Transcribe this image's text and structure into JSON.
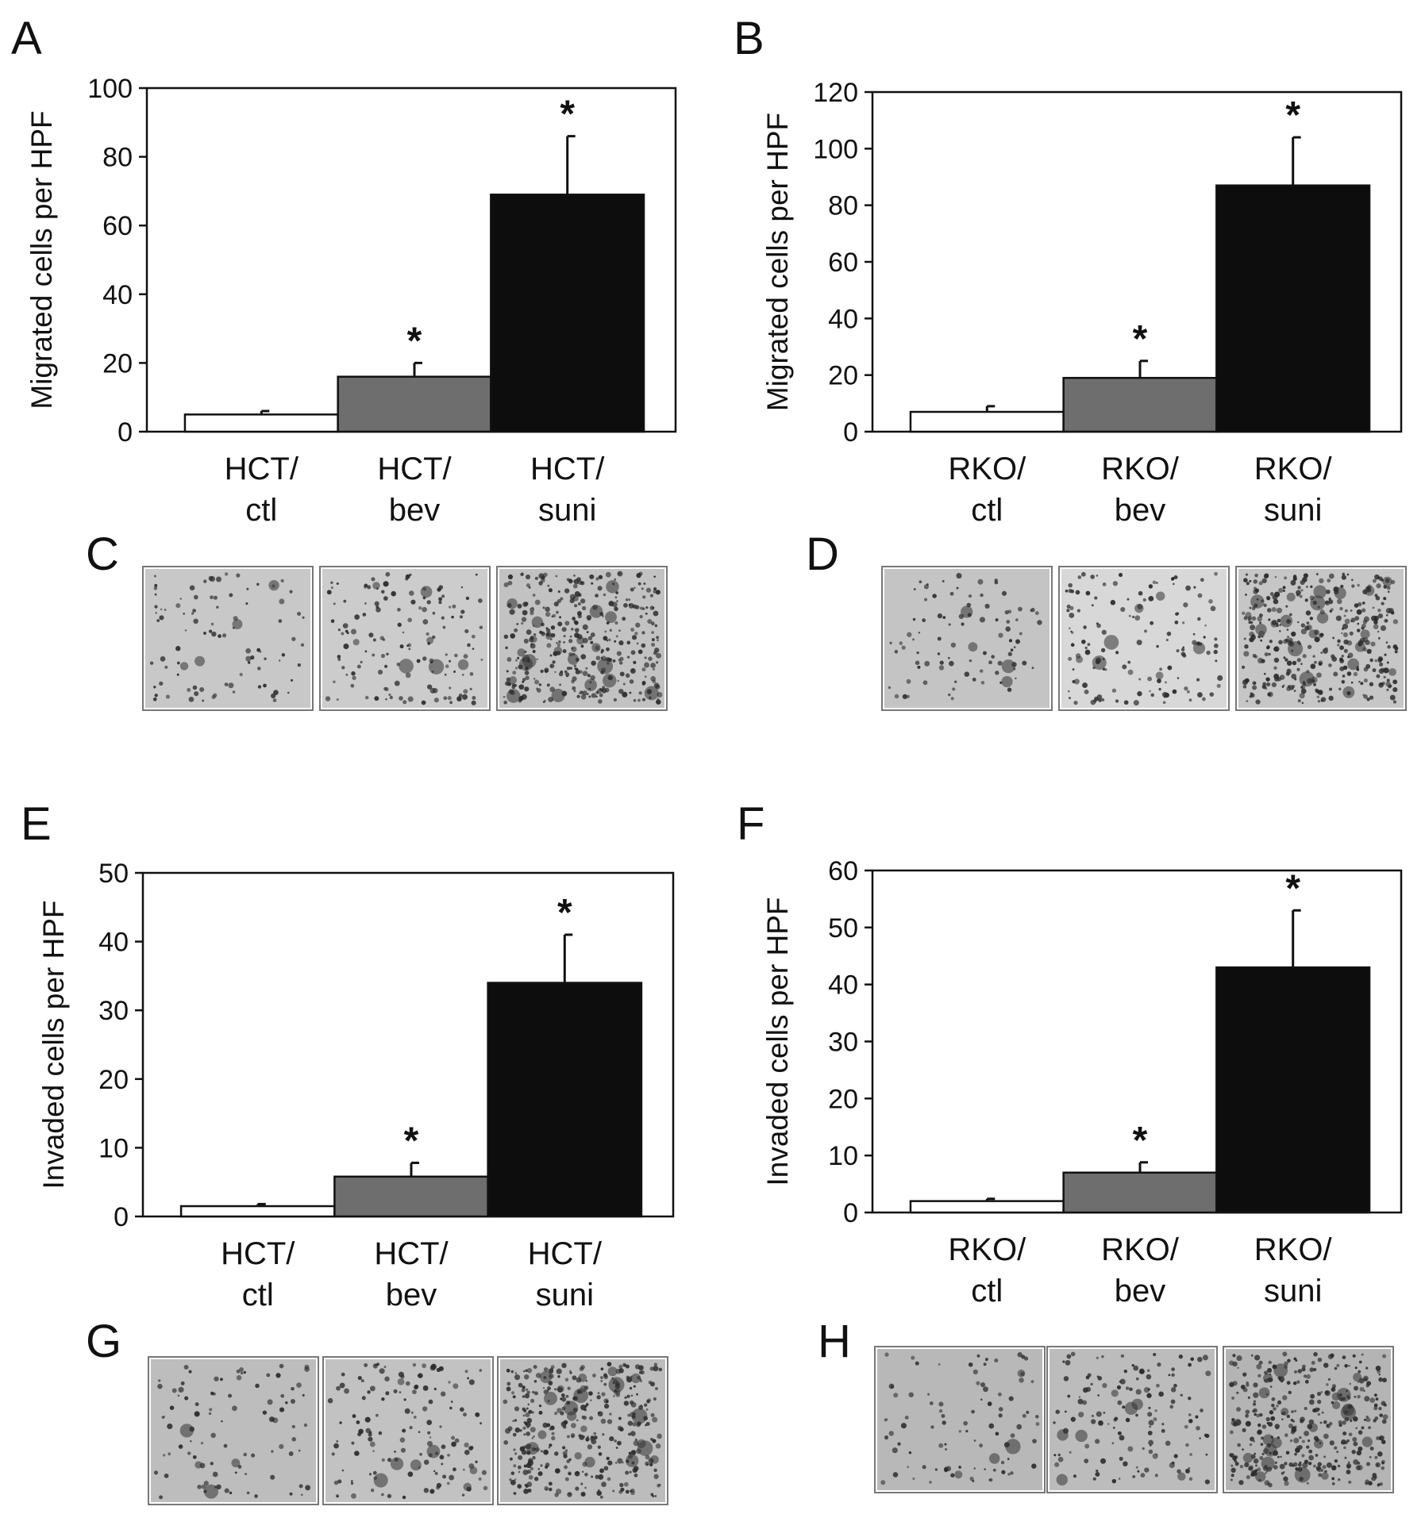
{
  "panels": [
    {
      "letter": "A"
    },
    {
      "letter": "B"
    },
    {
      "letter": "C"
    },
    {
      "letter": "D"
    },
    {
      "letter": "E"
    },
    {
      "letter": "F"
    },
    {
      "letter": "G"
    },
    {
      "letter": "H"
    }
  ],
  "chart_data": [
    {
      "panel": "A",
      "type": "bar",
      "categories": [
        [
          "HCT/",
          "ctl"
        ],
        [
          "HCT/",
          "bev"
        ],
        [
          "HCT/",
          "suni"
        ]
      ],
      "values": [
        5,
        16,
        69
      ],
      "errors": [
        1,
        4,
        17
      ],
      "significance": [
        "",
        "*",
        "*"
      ],
      "bar_colors": [
        "#ffffff",
        "#6e6e6e",
        "#0d0d0d"
      ],
      "ylabel": "Migrated cells per HPF",
      "ylim": [
        0,
        100
      ],
      "yticks": [
        0,
        20,
        40,
        60,
        80,
        100
      ],
      "grid": false,
      "legend": "none"
    },
    {
      "panel": "B",
      "type": "bar",
      "categories": [
        [
          "RKO/",
          "ctl"
        ],
        [
          "RKO/",
          "bev"
        ],
        [
          "RKO/",
          "suni"
        ]
      ],
      "values": [
        7,
        19,
        87
      ],
      "errors": [
        2,
        6,
        17
      ],
      "significance": [
        "",
        "*",
        "*"
      ],
      "bar_colors": [
        "#ffffff",
        "#6e6e6e",
        "#0d0d0d"
      ],
      "ylabel": "Migrated cells per HPF",
      "ylim": [
        0,
        120
      ],
      "yticks": [
        0,
        20,
        40,
        60,
        80,
        100,
        120
      ],
      "grid": false,
      "legend": "none"
    },
    {
      "panel": "E",
      "type": "bar",
      "categories": [
        [
          "HCT/",
          "ctl"
        ],
        [
          "HCT/",
          "bev"
        ],
        [
          "HCT/",
          "suni"
        ]
      ],
      "values": [
        1.5,
        5.8,
        34
      ],
      "errors": [
        0.3,
        2,
        7
      ],
      "significance": [
        "",
        "*",
        "*"
      ],
      "bar_colors": [
        "#ffffff",
        "#6e6e6e",
        "#0d0d0d"
      ],
      "ylabel": "Invaded cells per HPF",
      "ylim": [
        0,
        50
      ],
      "yticks": [
        0,
        10,
        20,
        30,
        40,
        50
      ],
      "grid": false,
      "legend": "none"
    },
    {
      "panel": "F",
      "type": "bar",
      "categories": [
        [
          "RKO/",
          "ctl"
        ],
        [
          "RKO/",
          "bev"
        ],
        [
          "RKO/",
          "suni"
        ]
      ],
      "values": [
        2,
        7,
        43
      ],
      "errors": [
        0.4,
        1.8,
        10
      ],
      "significance": [
        "",
        "*",
        "*"
      ],
      "bar_colors": [
        "#ffffff",
        "#6e6e6e",
        "#0d0d0d"
      ],
      "ylabel": "Invaded cells per HPF",
      "ylim": [
        0,
        60
      ],
      "yticks": [
        0,
        10,
        20,
        30,
        40,
        50,
        60
      ],
      "grid": false,
      "legend": "none"
    }
  ],
  "micrographs": [
    {
      "panel": "C",
      "images": [
        {
          "density": "sparse",
          "tone": "#c8c8c8"
        },
        {
          "density": "moderate",
          "tone": "#cccccc"
        },
        {
          "density": "dense",
          "tone": "#c2c2c2"
        }
      ]
    },
    {
      "panel": "D",
      "images": [
        {
          "density": "sparse",
          "tone": "#c4c4c4"
        },
        {
          "density": "moderate",
          "tone": "#d8d8d8"
        },
        {
          "density": "dense",
          "tone": "#c6c6c6"
        }
      ]
    },
    {
      "panel": "G",
      "images": [
        {
          "density": "sparse",
          "tone": "#bdbdbd"
        },
        {
          "density": "moderate",
          "tone": "#c2c2c2"
        },
        {
          "density": "dense",
          "tone": "#bcbcbc"
        }
      ]
    },
    {
      "panel": "H",
      "images": [
        {
          "density": "sparse",
          "tone": "#b8b8b8"
        },
        {
          "density": "moderate",
          "tone": "#bcbcbc"
        },
        {
          "density": "dense",
          "tone": "#b4b4b4"
        }
      ]
    }
  ]
}
